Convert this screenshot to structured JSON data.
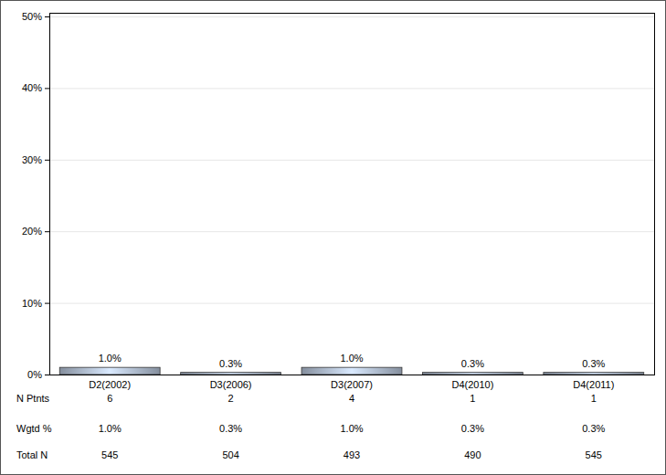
{
  "chart_data": {
    "type": "bar",
    "categories": [
      "D2(2002)",
      "D3(2006)",
      "D3(2007)",
      "D4(2010)",
      "D4(2011)"
    ],
    "values": [
      1.0,
      0.3,
      1.0,
      0.3,
      0.3
    ],
    "value_labels": [
      "1.0%",
      "0.3%",
      "1.0%",
      "0.3%",
      "0.3%"
    ],
    "data_labels": true,
    "color": "#a4b0c2",
    "ylim": [
      0,
      50
    ],
    "yticks": [
      {
        "value": 0,
        "label": "0%"
      },
      {
        "value": 10,
        "label": "10%"
      },
      {
        "value": 20,
        "label": "20%"
      },
      {
        "value": 30,
        "label": "30%"
      },
      {
        "value": 40,
        "label": "40%"
      },
      {
        "value": 50,
        "label": "50%"
      }
    ],
    "grid": true
  },
  "table": {
    "rows": [
      {
        "label": "N Ptnts",
        "cells": [
          6,
          2,
          4,
          1,
          1
        ]
      },
      {
        "label": "Wgtd %",
        "cells": [
          "1.0%",
          "0.3%",
          "1.0%",
          "0.3%",
          "0.3%"
        ]
      },
      {
        "label": "Total N",
        "cells": [
          545,
          504,
          493,
          490,
          545
        ]
      }
    ]
  }
}
